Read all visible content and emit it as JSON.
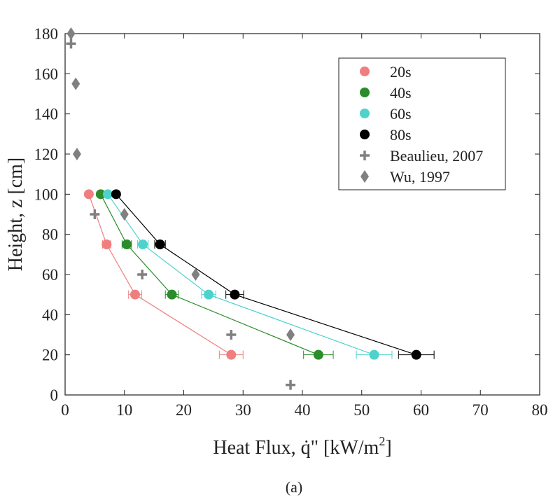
{
  "chart_data": {
    "type": "scatter",
    "caption": "(a)",
    "xlabel": "Heat Flux, q̇\" [kW/m",
    "xlabel_sup": "2",
    "xlabel_end": "]",
    "ylabel": "Height, z [cm]",
    "xlim": [
      0,
      80
    ],
    "ylim": [
      0,
      180
    ],
    "xticks": [
      0,
      10,
      20,
      30,
      40,
      50,
      60,
      70,
      80
    ],
    "yticks": [
      0,
      20,
      40,
      60,
      80,
      100,
      120,
      140,
      160,
      180
    ],
    "grid": false,
    "legend_position": "top-right",
    "colors": {
      "s20": "#ef7f7f",
      "s40": "#2a8c2a",
      "s60": "#4fd2cc",
      "s80": "#000000",
      "ref": "#808080"
    },
    "series": [
      {
        "name": "20s",
        "marker": "circle",
        "color": "#ef7f7f",
        "line": true,
        "points": [
          {
            "x": 4,
            "y": 100,
            "err": 0
          },
          {
            "x": 7,
            "y": 75,
            "err": 0.7
          },
          {
            "x": 11.8,
            "y": 50,
            "err": 1.1
          },
          {
            "x": 28,
            "y": 20,
            "err": 2
          }
        ]
      },
      {
        "name": "40s",
        "marker": "circle",
        "color": "#2a8c2a",
        "line": true,
        "points": [
          {
            "x": 6,
            "y": 100,
            "err": 0
          },
          {
            "x": 10.4,
            "y": 75,
            "err": 0.8
          },
          {
            "x": 18,
            "y": 50,
            "err": 1.1
          },
          {
            "x": 42.7,
            "y": 20,
            "err": 2.5
          }
        ]
      },
      {
        "name": "60s",
        "marker": "circle",
        "color": "#4fd2cc",
        "line": true,
        "points": [
          {
            "x": 7.2,
            "y": 100,
            "err": 0
          },
          {
            "x": 13.1,
            "y": 75,
            "err": 0.9
          },
          {
            "x": 24.2,
            "y": 50,
            "err": 1.2
          },
          {
            "x": 52.1,
            "y": 20,
            "err": 3
          }
        ]
      },
      {
        "name": "80s",
        "marker": "circle",
        "color": "#000000",
        "line": true,
        "points": [
          {
            "x": 8.6,
            "y": 100,
            "err": 0
          },
          {
            "x": 16,
            "y": 75,
            "err": 0.9
          },
          {
            "x": 28.6,
            "y": 50,
            "err": 1.5
          },
          {
            "x": 59.2,
            "y": 20,
            "err": 3
          }
        ]
      },
      {
        "name": "Beaulieu, 2007",
        "marker": "plus",
        "color": "#808080",
        "line": false,
        "points": [
          {
            "x": 1,
            "y": 175
          },
          {
            "x": 5,
            "y": 90
          },
          {
            "x": 13,
            "y": 60
          },
          {
            "x": 28,
            "y": 30
          },
          {
            "x": 38,
            "y": 5
          }
        ]
      },
      {
        "name": "Wu, 1997",
        "marker": "diamond",
        "color": "#808080",
        "line": false,
        "points": [
          {
            "x": 1,
            "y": 180
          },
          {
            "x": 1.8,
            "y": 155
          },
          {
            "x": 2,
            "y": 120
          },
          {
            "x": 10,
            "y": 90
          },
          {
            "x": 22,
            "y": 60
          },
          {
            "x": 38,
            "y": 30
          }
        ]
      }
    ]
  }
}
